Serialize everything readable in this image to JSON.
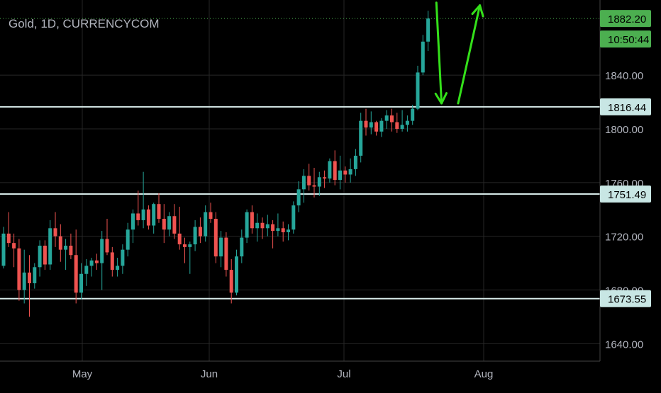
{
  "header": {
    "symbol_label": "Gold, 1D, CURRENCYCOM"
  },
  "colors": {
    "background": "#000000",
    "grid": "#262626",
    "axis_text": "#b2b5be",
    "up": "#26a69a",
    "down": "#ef5350",
    "level_line": "#d6e9e8",
    "level_badge_bg": "#c8e6e4",
    "level_badge_text": "#000000",
    "price_badge_bg": "#4caf50",
    "price_badge_text": "#000000",
    "last_price_line": "#4caf50",
    "arrow": "#34e01a"
  },
  "chart_data": {
    "type": "candlestick",
    "title": "Gold, 1D, CURRENCYCOM",
    "x_labels": [
      "May",
      "Jun",
      "Jul",
      "Aug"
    ],
    "y_ticks": [
      1640,
      1680,
      1720,
      1760,
      1800,
      1840
    ],
    "y_tick_labels": [
      "1640.00",
      "1680.00",
      "1720.00",
      "1760.00",
      "1800.00",
      "1840.00"
    ],
    "ylim": [
      1627,
      1896
    ],
    "grid": true,
    "last_price": {
      "value": 1882.2,
      "label": "1882.20",
      "countdown": "10:50:44"
    },
    "horizontal_levels": [
      {
        "value": 1816.44,
        "label": "1816.44"
      },
      {
        "value": 1751.49,
        "label": "1751.49"
      },
      {
        "value": 1673.55,
        "label": "1673.55"
      }
    ],
    "candles": [
      [
        1698,
        1727,
        1696,
        1722
      ],
      [
        1722,
        1738,
        1712,
        1715
      ],
      [
        1715,
        1722,
        1697,
        1711
      ],
      [
        1711,
        1718,
        1672,
        1680
      ],
      [
        1680,
        1710,
        1670,
        1693
      ],
      [
        1693,
        1706,
        1660,
        1685
      ],
      [
        1685,
        1700,
        1681,
        1697
      ],
      [
        1697,
        1717,
        1690,
        1713
      ],
      [
        1713,
        1717,
        1695,
        1699
      ],
      [
        1699,
        1732,
        1695,
        1726
      ],
      [
        1726,
        1738,
        1712,
        1720
      ],
      [
        1720,
        1729,
        1701,
        1710
      ],
      [
        1710,
        1718,
        1695,
        1713
      ],
      [
        1713,
        1722,
        1703,
        1706
      ],
      [
        1706,
        1725,
        1670,
        1678
      ],
      [
        1678,
        1700,
        1673,
        1692
      ],
      [
        1692,
        1703,
        1683,
        1698
      ],
      [
        1698,
        1704,
        1690,
        1702
      ],
      [
        1702,
        1707,
        1695,
        1700
      ],
      [
        1700,
        1724,
        1680,
        1718
      ],
      [
        1718,
        1733,
        1706,
        1708
      ],
      [
        1708,
        1712,
        1690,
        1695
      ],
      [
        1695,
        1704,
        1690,
        1698
      ],
      [
        1698,
        1714,
        1692,
        1710
      ],
      [
        1710,
        1730,
        1705,
        1725
      ],
      [
        1725,
        1740,
        1715,
        1737
      ],
      [
        1737,
        1754,
        1728,
        1732
      ],
      [
        1732,
        1768,
        1726,
        1740
      ],
      [
        1740,
        1743,
        1725,
        1728
      ],
      [
        1728,
        1745,
        1722,
        1744
      ],
      [
        1744,
        1752,
        1730,
        1733
      ],
      [
        1733,
        1744,
        1715,
        1725
      ],
      [
        1725,
        1738,
        1720,
        1735
      ],
      [
        1735,
        1744,
        1718,
        1722
      ],
      [
        1722,
        1742,
        1710,
        1714
      ],
      [
        1714,
        1719,
        1700,
        1712
      ],
      [
        1712,
        1716,
        1692,
        1714
      ],
      [
        1714,
        1732,
        1709,
        1727
      ],
      [
        1727,
        1734,
        1715,
        1720
      ],
      [
        1720,
        1743,
        1716,
        1738
      ],
      [
        1738,
        1745,
        1730,
        1733
      ],
      [
        1733,
        1738,
        1700,
        1705
      ],
      [
        1705,
        1724,
        1697,
        1719
      ],
      [
        1719,
        1723,
        1690,
        1695
      ],
      [
        1695,
        1703,
        1670,
        1678
      ],
      [
        1678,
        1710,
        1676,
        1705
      ],
      [
        1705,
        1725,
        1700,
        1719
      ],
      [
        1719,
        1740,
        1715,
        1738
      ],
      [
        1738,
        1743,
        1722,
        1726
      ],
      [
        1726,
        1737,
        1716,
        1730
      ],
      [
        1730,
        1734,
        1718,
        1726
      ],
      [
        1726,
        1736,
        1720,
        1729
      ],
      [
        1729,
        1732,
        1711,
        1724
      ],
      [
        1724,
        1737,
        1720,
        1726
      ],
      [
        1726,
        1731,
        1716,
        1723
      ],
      [
        1723,
        1729,
        1717,
        1725
      ],
      [
        1725,
        1746,
        1722,
        1743
      ],
      [
        1743,
        1761,
        1738,
        1755
      ],
      [
        1755,
        1770,
        1745,
        1765
      ],
      [
        1765,
        1774,
        1754,
        1758
      ],
      [
        1758,
        1771,
        1749,
        1757
      ],
      [
        1757,
        1768,
        1750,
        1764
      ],
      [
        1764,
        1769,
        1756,
        1763
      ],
      [
        1763,
        1778,
        1760,
        1776
      ],
      [
        1776,
        1784,
        1758,
        1762
      ],
      [
        1762,
        1780,
        1755,
        1769
      ],
      [
        1769,
        1772,
        1760,
        1766
      ],
      [
        1766,
        1778,
        1760,
        1770
      ],
      [
        1770,
        1785,
        1765,
        1780
      ],
      [
        1780,
        1812,
        1775,
        1806
      ],
      [
        1806,
        1815,
        1795,
        1801
      ],
      [
        1801,
        1813,
        1796,
        1805
      ],
      [
        1805,
        1806,
        1795,
        1798
      ],
      [
        1798,
        1808,
        1794,
        1806
      ],
      [
        1806,
        1814,
        1800,
        1810
      ],
      [
        1810,
        1815,
        1798,
        1805
      ],
      [
        1805,
        1812,
        1797,
        1800
      ],
      [
        1800,
        1814,
        1798,
        1803
      ],
      [
        1803,
        1810,
        1798,
        1806
      ],
      [
        1806,
        1818,
        1803,
        1815
      ],
      [
        1815,
        1847,
        1814,
        1842
      ],
      [
        1842,
        1870,
        1840,
        1865
      ],
      [
        1865,
        1888,
        1858,
        1882.2
      ]
    ],
    "arrows": [
      {
        "from": [
          83.6,
          1894
        ],
        "to": [
          84.6,
          1819
        ],
        "direction": "down"
      },
      {
        "from": [
          87.8,
          1819
        ],
        "to": [
          92,
          1892
        ],
        "direction": "up"
      }
    ]
  }
}
